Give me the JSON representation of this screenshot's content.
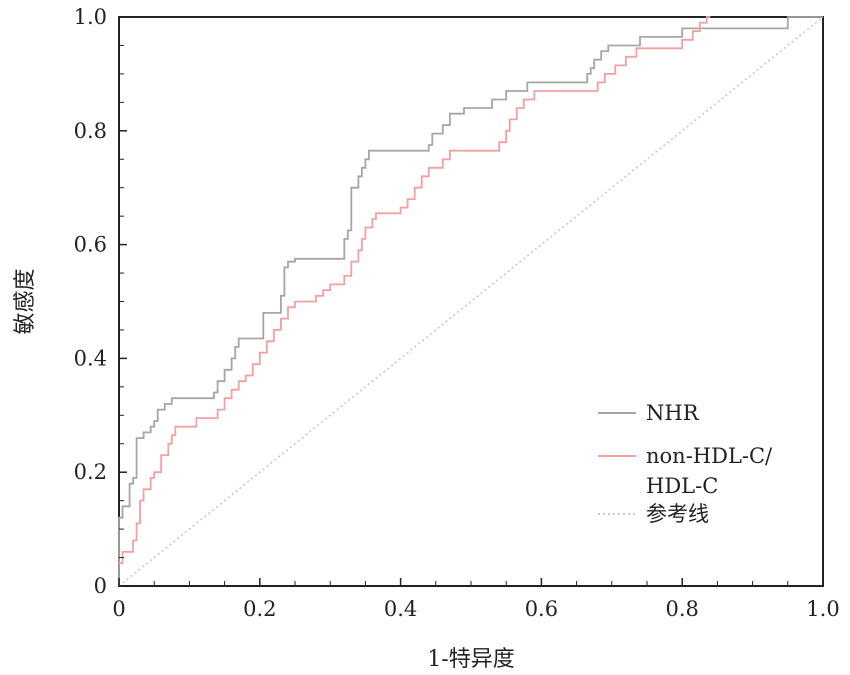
{
  "chart_data": {
    "type": "line",
    "title": "",
    "xlabel": "1-特异度",
    "ylabel": "敏感度",
    "xlim": [
      0,
      1
    ],
    "ylim": [
      0,
      1
    ],
    "grid": false,
    "legend_position": "bottom-right",
    "x_ticks": [
      0,
      0.2,
      0.4,
      0.6,
      0.8,
      1.0
    ],
    "x_tick_labels": [
      "0",
      "0.2",
      "0.4",
      "0.6",
      "0.8",
      "1.0"
    ],
    "y_ticks": [
      0,
      0.2,
      0.4,
      0.6,
      0.8,
      1.0
    ],
    "y_tick_labels": [
      "0",
      "0.2",
      "0.4",
      "0.6",
      "0.8",
      "1.0"
    ],
    "series": [
      {
        "name": "NHR",
        "color": "#a6a6a6",
        "style": "solid",
        "points": [
          [
            0,
            0
          ],
          [
            0,
            0.12
          ],
          [
            0.005,
            0.12
          ],
          [
            0.005,
            0.14
          ],
          [
            0.015,
            0.14
          ],
          [
            0.015,
            0.18
          ],
          [
            0.02,
            0.18
          ],
          [
            0.02,
            0.19
          ],
          [
            0.025,
            0.19
          ],
          [
            0.025,
            0.26
          ],
          [
            0.035,
            0.26
          ],
          [
            0.035,
            0.27
          ],
          [
            0.045,
            0.27
          ],
          [
            0.045,
            0.28
          ],
          [
            0.05,
            0.28
          ],
          [
            0.05,
            0.29
          ],
          [
            0.055,
            0.29
          ],
          [
            0.055,
            0.31
          ],
          [
            0.065,
            0.31
          ],
          [
            0.065,
            0.32
          ],
          [
            0.075,
            0.32
          ],
          [
            0.075,
            0.33
          ],
          [
            0.135,
            0.33
          ],
          [
            0.135,
            0.34
          ],
          [
            0.14,
            0.34
          ],
          [
            0.14,
            0.36
          ],
          [
            0.15,
            0.36
          ],
          [
            0.15,
            0.38
          ],
          [
            0.16,
            0.38
          ],
          [
            0.16,
            0.4
          ],
          [
            0.165,
            0.4
          ],
          [
            0.165,
            0.42
          ],
          [
            0.17,
            0.42
          ],
          [
            0.17,
            0.435
          ],
          [
            0.205,
            0.435
          ],
          [
            0.205,
            0.48
          ],
          [
            0.23,
            0.48
          ],
          [
            0.23,
            0.51
          ],
          [
            0.235,
            0.51
          ],
          [
            0.235,
            0.56
          ],
          [
            0.24,
            0.56
          ],
          [
            0.24,
            0.57
          ],
          [
            0.25,
            0.57
          ],
          [
            0.25,
            0.575
          ],
          [
            0.32,
            0.575
          ],
          [
            0.32,
            0.61
          ],
          [
            0.325,
            0.61
          ],
          [
            0.325,
            0.625
          ],
          [
            0.33,
            0.625
          ],
          [
            0.33,
            0.7
          ],
          [
            0.34,
            0.7
          ],
          [
            0.34,
            0.72
          ],
          [
            0.345,
            0.72
          ],
          [
            0.345,
            0.735
          ],
          [
            0.35,
            0.735
          ],
          [
            0.35,
            0.75
          ],
          [
            0.355,
            0.75
          ],
          [
            0.355,
            0.765
          ],
          [
            0.44,
            0.765
          ],
          [
            0.44,
            0.775
          ],
          [
            0.445,
            0.775
          ],
          [
            0.445,
            0.795
          ],
          [
            0.46,
            0.795
          ],
          [
            0.46,
            0.81
          ],
          [
            0.47,
            0.81
          ],
          [
            0.47,
            0.83
          ],
          [
            0.49,
            0.83
          ],
          [
            0.49,
            0.84
          ],
          [
            0.53,
            0.84
          ],
          [
            0.53,
            0.855
          ],
          [
            0.55,
            0.855
          ],
          [
            0.55,
            0.87
          ],
          [
            0.58,
            0.87
          ],
          [
            0.58,
            0.885
          ],
          [
            0.665,
            0.885
          ],
          [
            0.665,
            0.9
          ],
          [
            0.67,
            0.9
          ],
          [
            0.67,
            0.91
          ],
          [
            0.675,
            0.91
          ],
          [
            0.675,
            0.925
          ],
          [
            0.685,
            0.925
          ],
          [
            0.685,
            0.94
          ],
          [
            0.695,
            0.94
          ],
          [
            0.695,
            0.95
          ],
          [
            0.74,
            0.95
          ],
          [
            0.74,
            0.965
          ],
          [
            0.8,
            0.965
          ],
          [
            0.8,
            0.98
          ],
          [
            0.95,
            0.98
          ],
          [
            0.95,
            1.0
          ],
          [
            1.0,
            1.0
          ]
        ]
      },
      {
        "name": "non-HDL-C/\nHDL-C",
        "color": "#f4a0a0",
        "style": "solid",
        "points": [
          [
            0,
            0.04
          ],
          [
            0.005,
            0.04
          ],
          [
            0.005,
            0.06
          ],
          [
            0.02,
            0.06
          ],
          [
            0.02,
            0.08
          ],
          [
            0.025,
            0.08
          ],
          [
            0.025,
            0.11
          ],
          [
            0.03,
            0.11
          ],
          [
            0.03,
            0.15
          ],
          [
            0.035,
            0.15
          ],
          [
            0.035,
            0.17
          ],
          [
            0.045,
            0.17
          ],
          [
            0.045,
            0.19
          ],
          [
            0.05,
            0.19
          ],
          [
            0.05,
            0.2
          ],
          [
            0.06,
            0.2
          ],
          [
            0.06,
            0.23
          ],
          [
            0.07,
            0.23
          ],
          [
            0.07,
            0.25
          ],
          [
            0.075,
            0.25
          ],
          [
            0.075,
            0.265
          ],
          [
            0.08,
            0.265
          ],
          [
            0.08,
            0.28
          ],
          [
            0.11,
            0.28
          ],
          [
            0.11,
            0.295
          ],
          [
            0.14,
            0.295
          ],
          [
            0.14,
            0.31
          ],
          [
            0.15,
            0.31
          ],
          [
            0.15,
            0.33
          ],
          [
            0.16,
            0.33
          ],
          [
            0.16,
            0.345
          ],
          [
            0.17,
            0.345
          ],
          [
            0.17,
            0.36
          ],
          [
            0.18,
            0.36
          ],
          [
            0.18,
            0.37
          ],
          [
            0.19,
            0.37
          ],
          [
            0.19,
            0.39
          ],
          [
            0.2,
            0.39
          ],
          [
            0.2,
            0.41
          ],
          [
            0.21,
            0.41
          ],
          [
            0.21,
            0.43
          ],
          [
            0.22,
            0.43
          ],
          [
            0.22,
            0.45
          ],
          [
            0.23,
            0.45
          ],
          [
            0.23,
            0.47
          ],
          [
            0.24,
            0.47
          ],
          [
            0.24,
            0.49
          ],
          [
            0.25,
            0.49
          ],
          [
            0.25,
            0.5
          ],
          [
            0.28,
            0.5
          ],
          [
            0.28,
            0.51
          ],
          [
            0.29,
            0.51
          ],
          [
            0.29,
            0.52
          ],
          [
            0.3,
            0.52
          ],
          [
            0.3,
            0.53
          ],
          [
            0.32,
            0.53
          ],
          [
            0.32,
            0.545
          ],
          [
            0.33,
            0.545
          ],
          [
            0.33,
            0.57
          ],
          [
            0.34,
            0.57
          ],
          [
            0.34,
            0.59
          ],
          [
            0.345,
            0.59
          ],
          [
            0.345,
            0.61
          ],
          [
            0.35,
            0.61
          ],
          [
            0.35,
            0.63
          ],
          [
            0.36,
            0.63
          ],
          [
            0.36,
            0.645
          ],
          [
            0.365,
            0.645
          ],
          [
            0.365,
            0.655
          ],
          [
            0.4,
            0.655
          ],
          [
            0.4,
            0.665
          ],
          [
            0.41,
            0.665
          ],
          [
            0.41,
            0.68
          ],
          [
            0.42,
            0.68
          ],
          [
            0.42,
            0.7
          ],
          [
            0.43,
            0.7
          ],
          [
            0.43,
            0.72
          ],
          [
            0.44,
            0.72
          ],
          [
            0.44,
            0.735
          ],
          [
            0.46,
            0.735
          ],
          [
            0.46,
            0.75
          ],
          [
            0.47,
            0.75
          ],
          [
            0.47,
            0.765
          ],
          [
            0.54,
            0.765
          ],
          [
            0.54,
            0.78
          ],
          [
            0.55,
            0.78
          ],
          [
            0.55,
            0.8
          ],
          [
            0.555,
            0.8
          ],
          [
            0.555,
            0.82
          ],
          [
            0.565,
            0.82
          ],
          [
            0.565,
            0.84
          ],
          [
            0.575,
            0.84
          ],
          [
            0.575,
            0.855
          ],
          [
            0.59,
            0.855
          ],
          [
            0.59,
            0.87
          ],
          [
            0.68,
            0.87
          ],
          [
            0.68,
            0.885
          ],
          [
            0.69,
            0.885
          ],
          [
            0.69,
            0.9
          ],
          [
            0.705,
            0.9
          ],
          [
            0.705,
            0.915
          ],
          [
            0.72,
            0.915
          ],
          [
            0.72,
            0.93
          ],
          [
            0.735,
            0.93
          ],
          [
            0.735,
            0.945
          ],
          [
            0.8,
            0.945
          ],
          [
            0.8,
            0.96
          ],
          [
            0.815,
            0.96
          ],
          [
            0.815,
            0.975
          ],
          [
            0.825,
            0.975
          ],
          [
            0.825,
            0.99
          ],
          [
            0.835,
            0.99
          ],
          [
            0.835,
            1.0
          ],
          [
            0.84,
            1.0
          ]
        ]
      },
      {
        "name": "参考线",
        "color": "#c8c8c8",
        "style": "dotted",
        "points": [
          [
            0,
            0
          ],
          [
            1,
            1
          ]
        ]
      }
    ]
  }
}
